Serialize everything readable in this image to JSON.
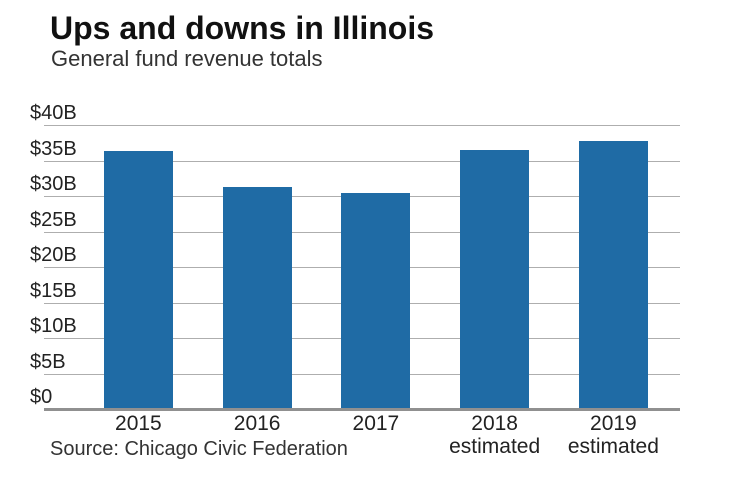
{
  "colors": {
    "background": "#ffffff",
    "bar": "#1f6ba5",
    "gridline": "#aeaeae",
    "axis_line": "#909090",
    "title": "#111111",
    "subtitle": "#333333",
    "tick_label": "#222222",
    "source": "#333333"
  },
  "chart_data": {
    "type": "bar",
    "title": "Ups and downs in Illinois",
    "subtitle": "General fund revenue totals",
    "source": "Source: Chicago Civic Federation",
    "categories": [
      {
        "label": "2015",
        "sublabel": ""
      },
      {
        "label": "2016",
        "sublabel": ""
      },
      {
        "label": "2017",
        "sublabel": ""
      },
      {
        "label": "2018",
        "sublabel": "estimated"
      },
      {
        "label": "2019",
        "sublabel": "estimated"
      }
    ],
    "values": [
      36.4,
      31.3,
      30.4,
      36.5,
      37.7
    ],
    "xlabel": "",
    "ylabel": "",
    "ylim": [
      0,
      40
    ],
    "yticks": [
      {
        "value": 0,
        "label": "$0"
      },
      {
        "value": 5,
        "label": "$5B"
      },
      {
        "value": 10,
        "label": "$10B"
      },
      {
        "value": 15,
        "label": "$15B"
      },
      {
        "value": 20,
        "label": "$20B"
      },
      {
        "value": 25,
        "label": "$25B"
      },
      {
        "value": 30,
        "label": "$30B"
      },
      {
        "value": 35,
        "label": "$35B"
      },
      {
        "value": 40,
        "label": "$40B"
      }
    ],
    "grid": true,
    "legend": false
  }
}
